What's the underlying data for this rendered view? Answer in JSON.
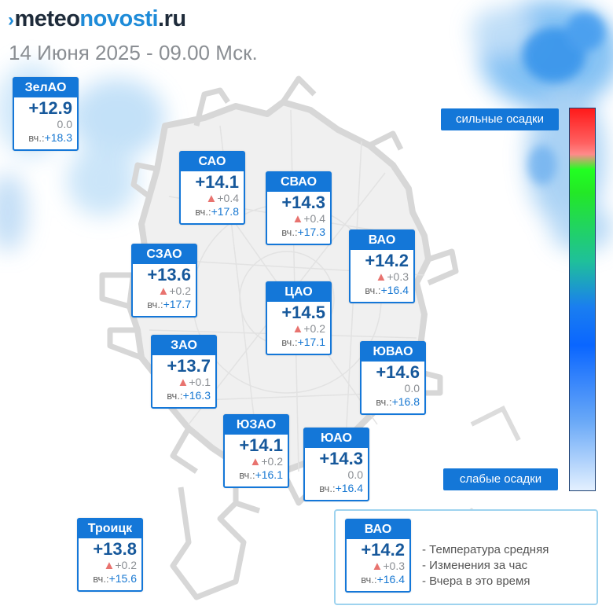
{
  "brand": {
    "mark": "›",
    "dark": "meteo",
    "blue": "novosti",
    "suffix": ".ru"
  },
  "date": "14 Июня 2025 - 09.00 Мск.",
  "colors": {
    "card_header": "#1477d8",
    "temp_text": "#16589b",
    "yesterday_text": "#1677d2",
    "change_arrow": "#e8736f"
  },
  "districts": [
    {
      "id": "zelao",
      "name": "ЗелАО",
      "temp": "+12.9",
      "arrow": "",
      "change": "0.0",
      "yest_label": "вч.:",
      "yest": "+18.3"
    },
    {
      "id": "sao",
      "name": "САО",
      "temp": "+14.1",
      "arrow": "▲",
      "change": "+0.4",
      "yest_label": "вч.:",
      "yest": "+17.8"
    },
    {
      "id": "svao",
      "name": "СВАО",
      "temp": "+14.3",
      "arrow": "▲",
      "change": "+0.4",
      "yest_label": "вч.:",
      "yest": "+17.3"
    },
    {
      "id": "vao",
      "name": "ВАО",
      "temp": "+14.2",
      "arrow": "▲",
      "change": "+0.3",
      "yest_label": "вч.:",
      "yest": "+16.4"
    },
    {
      "id": "szao",
      "name": "СЗАО",
      "temp": "+13.6",
      "arrow": "▲",
      "change": "+0.2",
      "yest_label": "вч.:",
      "yest": "+17.7"
    },
    {
      "id": "cao",
      "name": "ЦАО",
      "temp": "+14.5",
      "arrow": "▲",
      "change": "+0.2",
      "yest_label": "вч.:",
      "yest": "+17.1"
    },
    {
      "id": "zao",
      "name": "ЗАО",
      "temp": "+13.7",
      "arrow": "▲",
      "change": "+0.1",
      "yest_label": "вч.:",
      "yest": "+16.3"
    },
    {
      "id": "yuvao",
      "name": "ЮВАО",
      "temp": "+14.6",
      "arrow": "",
      "change": "0.0",
      "yest_label": "вч.:",
      "yest": "+16.8"
    },
    {
      "id": "yuzao",
      "name": "ЮЗАО",
      "temp": "+14.1",
      "arrow": "▲",
      "change": "+0.2",
      "yest_label": "вч.:",
      "yest": "+16.1"
    },
    {
      "id": "yuao",
      "name": "ЮАО",
      "temp": "+14.3",
      "arrow": "",
      "change": "0.0",
      "yest_label": "вч.:",
      "yest": "+16.4"
    },
    {
      "id": "troitsk",
      "name": "Троицк",
      "temp": "+13.8",
      "arrow": "▲",
      "change": "+0.2",
      "yest_label": "вч.:",
      "yest": "+15.6"
    }
  ],
  "scale": {
    "top_label": "сильные осадки",
    "bottom_label": "слабые осадки"
  },
  "legend": {
    "sample": {
      "name": "ВАО",
      "temp": "+14.2",
      "arrow": "▲",
      "change": "+0.3",
      "yest_label": "вч.:",
      "yest": "+16.4"
    },
    "lines": [
      "- Температура средняя",
      "- Изменения за час",
      "- Вчера в это время"
    ]
  }
}
